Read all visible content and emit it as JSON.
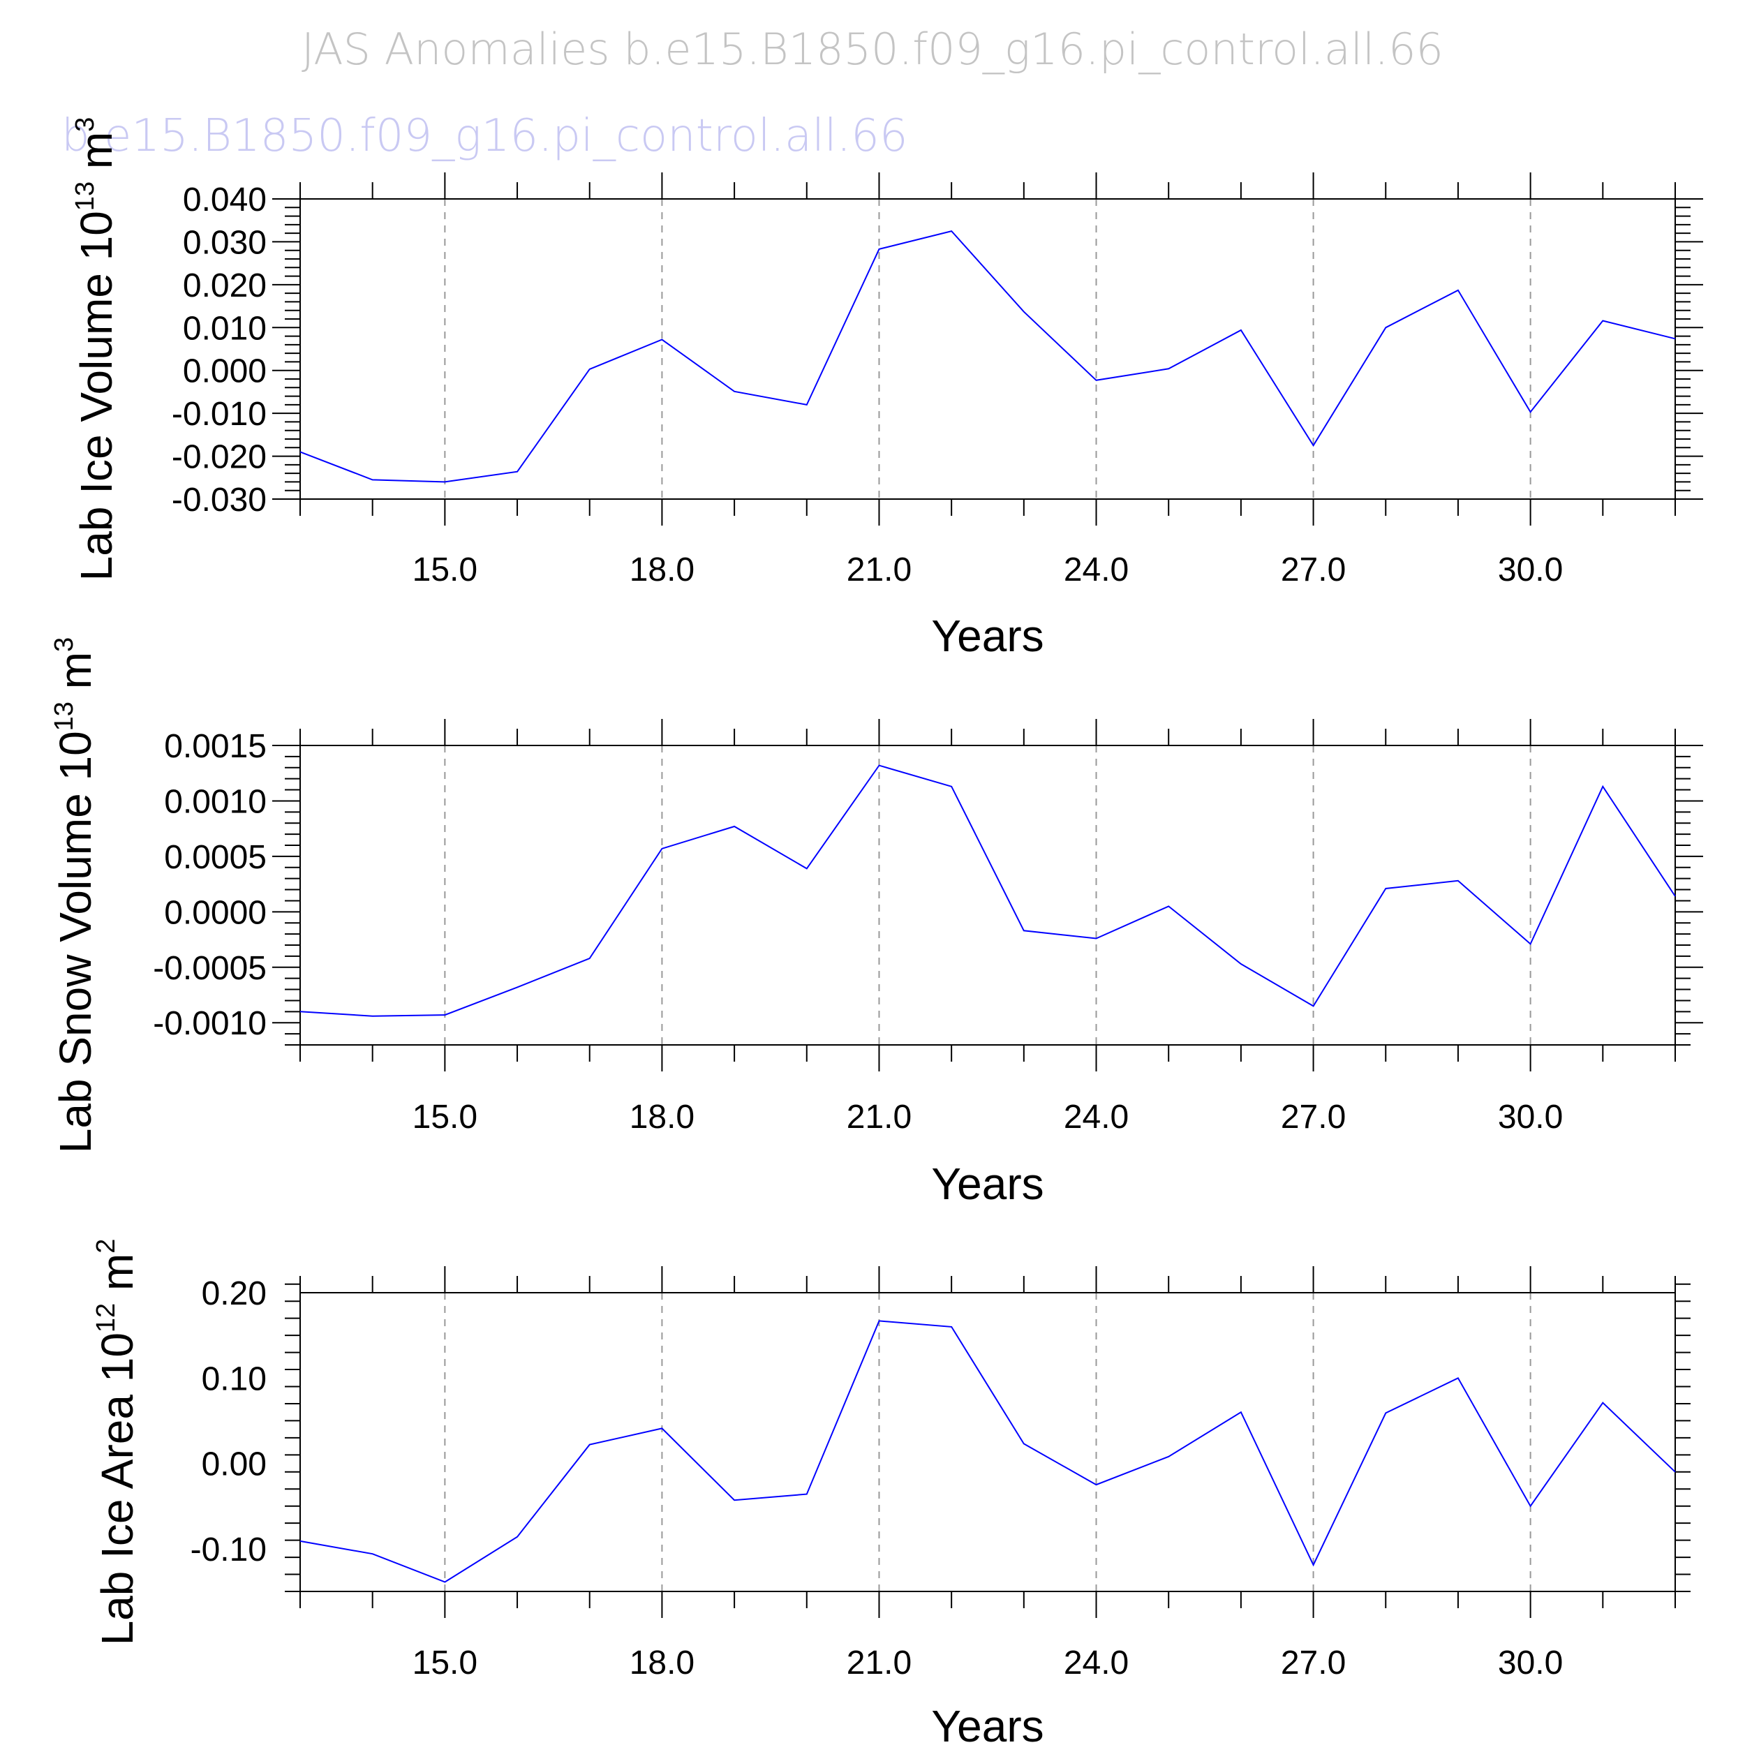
{
  "figure": {
    "title": "JAS Anomalies  b.e15.B1850.f09_g16.pi_control.all.66",
    "subtitle": "b.e15.B1850.f09_g16.pi_control.all.66",
    "line_color": "#0000ff",
    "grid_color": "#999999"
  },
  "chart_data": [
    {
      "type": "line",
      "ylabel_main": "Lab Ice Volume 10",
      "ylabel_exp": "13",
      "ylabel_unit": " m",
      "ylabel_unit_exp": "3",
      "xlabel": "Years",
      "xlim": [
        13,
        32
      ],
      "ylim": [
        -0.03,
        0.04
      ],
      "x_ticks": [
        15,
        18,
        21,
        24,
        27,
        30
      ],
      "x_tick_labels": [
        "15.0",
        "18.0",
        "21.0",
        "24.0",
        "27.0",
        "30.0"
      ],
      "y_ticks": [
        -0.03,
        -0.02,
        -0.01,
        0.0,
        0.01,
        0.02,
        0.03,
        0.04
      ],
      "y_tick_labels": [
        "-0.030",
        "-0.020",
        "-0.010",
        "0.000",
        "0.010",
        "0.020",
        "0.030",
        "0.040"
      ],
      "grid": "vertical dashed at labeled x ticks",
      "x": [
        13,
        14,
        15,
        16,
        17,
        18,
        19,
        20,
        21,
        22,
        23,
        24,
        25,
        26,
        27,
        28,
        29,
        30,
        31,
        32
      ],
      "y": [
        -0.019,
        -0.0255,
        -0.026,
        -0.0236,
        0.0003,
        0.0072,
        -0.0049,
        -0.008,
        0.0283,
        0.0325,
        0.0137,
        -0.0023,
        0.0004,
        0.0094,
        -0.0175,
        0.01,
        0.0187,
        -0.0097,
        0.0116,
        0.0074
      ]
    },
    {
      "type": "line",
      "ylabel_main": "Lab Snow Volume 10",
      "ylabel_exp": "13",
      "ylabel_unit": " m",
      "ylabel_unit_exp": "3",
      "xlabel": "Years",
      "xlim": [
        13,
        32
      ],
      "ylim": [
        -0.0012,
        0.0015
      ],
      "x_ticks": [
        15,
        18,
        21,
        24,
        27,
        30
      ],
      "x_tick_labels": [
        "15.0",
        "18.0",
        "21.0",
        "24.0",
        "27.0",
        "30.0"
      ],
      "y_ticks": [
        -0.001,
        -0.0005,
        0.0,
        0.0005,
        0.001,
        0.0015
      ],
      "y_tick_labels": [
        "-0.0010",
        "-0.0005",
        "0.0000",
        "0.0005",
        "0.0010",
        "0.0015"
      ],
      "grid": "vertical dashed at labeled x ticks",
      "x": [
        13,
        14,
        15,
        16,
        17,
        18,
        19,
        20,
        21,
        22,
        23,
        24,
        25,
        26,
        27,
        28,
        29,
        30,
        31,
        32
      ],
      "y": [
        -0.0009,
        -0.00094,
        -0.00093,
        -0.00068,
        -0.00042,
        0.00057,
        0.00077,
        0.00039,
        0.00132,
        0.00113,
        -0.00017,
        -0.00024,
        5e-05,
        -0.00047,
        -0.00085,
        0.00021,
        0.00028,
        -0.00029,
        0.00113,
        0.00014
      ]
    },
    {
      "type": "line",
      "ylabel_main": "Lab Ice Area 10",
      "ylabel_exp": "12",
      "ylabel_unit": " m",
      "ylabel_unit_exp": "2",
      "xlabel": "Years",
      "xlim": [
        13,
        32
      ],
      "ylim": [
        -0.15,
        0.2
      ],
      "x_ticks": [
        15,
        18,
        21,
        24,
        27,
        30
      ],
      "x_tick_labels": [
        "15.0",
        "18.0",
        "21.0",
        "24.0",
        "27.0",
        "30.0"
      ],
      "y_ticks": [
        -0.1,
        0.0,
        0.1,
        0.2
      ],
      "y_tick_labels": [
        "-0.10",
        "0.00",
        "0.10",
        "0.20"
      ],
      "grid": "vertical dashed at labeled x ticks",
      "x": [
        13,
        14,
        15,
        16,
        17,
        18,
        19,
        20,
        21,
        22,
        23,
        24,
        25,
        26,
        27,
        28,
        29,
        30,
        31,
        32
      ],
      "y": [
        -0.091,
        -0.106,
        -0.139,
        -0.086,
        0.022,
        0.041,
        -0.043,
        -0.036,
        0.167,
        0.16,
        0.023,
        -0.025,
        0.008,
        0.06,
        -0.119,
        0.059,
        0.1,
        -0.05,
        0.071,
        -0.01
      ]
    }
  ]
}
